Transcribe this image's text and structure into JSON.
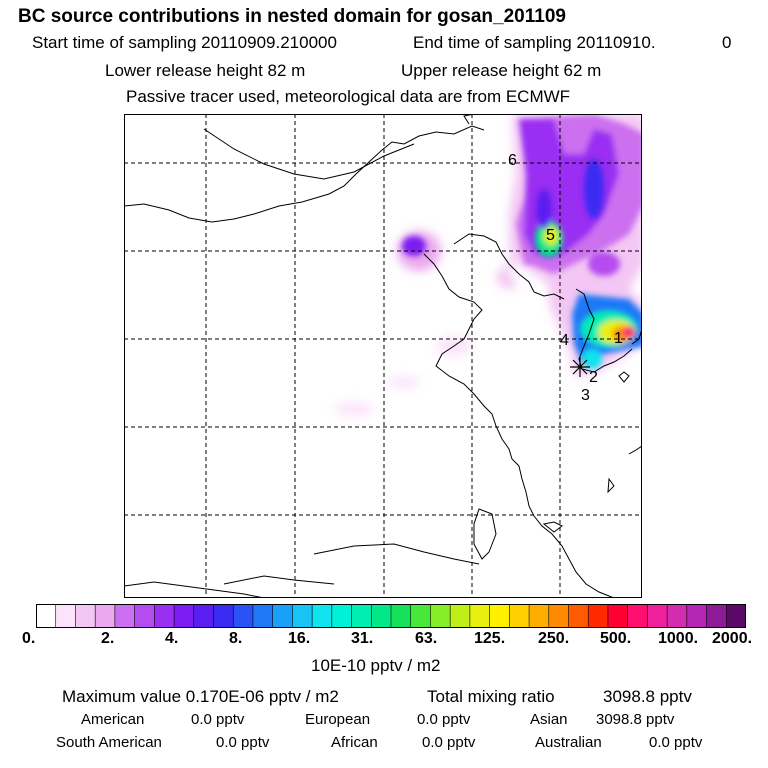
{
  "header": {
    "title": "BC  source contributions in nested domain for gosan_201109",
    "start_label": "Start time of sampling 20110909.210000",
    "end_label": "End time of sampling 20110910.",
    "end_value": "0",
    "lower_label": "Lower release height   82 m",
    "upper_label": "Upper release height   62 m",
    "note": "Passive tracer used, meteorological data are from ECMWF"
  },
  "chart_data": {
    "type": "heatmap",
    "title": "BC  source contributions in nested domain for gosan_201109",
    "colorbar": {
      "unit": "10E-10 pptv / m2",
      "tick_labels": [
        "0.",
        "2.",
        "4.",
        "8.",
        "16.",
        "31.",
        "63.",
        "125.",
        "250.",
        "500.",
        "1000.",
        "2000."
      ],
      "colors": [
        "#ffffff",
        "#fbe4fb",
        "#f3c6f3",
        "#eaa8ee",
        "#cc6ff0",
        "#b54cf0",
        "#9a2ef2",
        "#7d1cf2",
        "#5b1ef0",
        "#3a2cf2",
        "#2a52f4",
        "#1f78f6",
        "#1aa0f8",
        "#18c4f6",
        "#10e4ee",
        "#00f2d6",
        "#00eeb0",
        "#00e888",
        "#14e25a",
        "#48e83a",
        "#86ee28",
        "#bef018",
        "#e8f010",
        "#fff000",
        "#ffd000",
        "#ffae00",
        "#ff8a00",
        "#ff5a00",
        "#ff2a00",
        "#ff0030",
        "#ff1070",
        "#f0209c",
        "#d42cb0",
        "#b426b4",
        "#8e1a98",
        "#5a0a66"
      ],
      "grid": true
    },
    "source_markers": [
      {
        "label": "1"
      },
      {
        "label": "2"
      },
      {
        "label": "3"
      },
      {
        "label": "4"
      },
      {
        "label": "5"
      },
      {
        "label": "6"
      }
    ],
    "max_value": "0.170E-06",
    "total_mixing_ratio": "3098.8"
  },
  "footer": {
    "max_label": "Maximum value  0.170E-06 pptv / m2",
    "total_label": "Total mixing ratio",
    "total_value": "3098.8 pptv",
    "regions": [
      {
        "name": "American",
        "value": "0.0 pptv"
      },
      {
        "name": "European",
        "value": "0.0 pptv"
      },
      {
        "name": "Asian",
        "value": "3098.8 pptv"
      },
      {
        "name": "South American",
        "value": "0.0 pptv"
      },
      {
        "name": "African",
        "value": "0.0 pptv"
      },
      {
        "name": "Australian",
        "value": "0.0 pptv"
      }
    ]
  }
}
